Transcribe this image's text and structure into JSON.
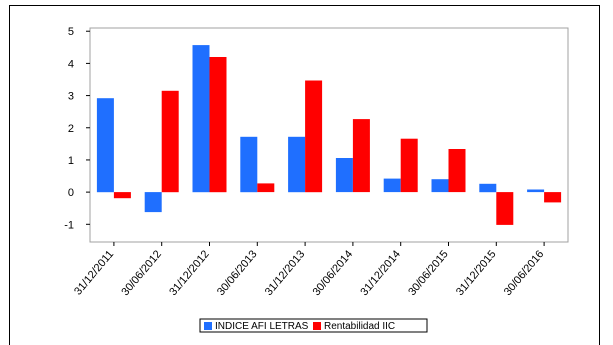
{
  "chart_data": {
    "type": "bar",
    "categories": [
      "31/12/2011",
      "30/06/2012",
      "31/12/2012",
      "30/06/2013",
      "31/12/2013",
      "30/06/2014",
      "31/12/2014",
      "30/06/2015",
      "31/12/2015",
      "30/06/2016"
    ],
    "series": [
      {
        "name": "INDICE AFI LETRAS",
        "color": "#1f6fff",
        "values": [
          2.92,
          -0.62,
          4.57,
          1.72,
          1.72,
          1.06,
          0.42,
          0.4,
          0.26,
          0.08
        ]
      },
      {
        "name": "Rentabilidad IIC",
        "color": "#ff0000",
        "values": [
          -0.19,
          3.15,
          4.2,
          0.27,
          3.47,
          2.27,
          1.66,
          1.34,
          -1.02,
          -0.32
        ]
      }
    ],
    "yticks": [
      5,
      4,
      3,
      2,
      1,
      0,
      -1
    ],
    "ylim": [
      -1.55,
      5.1
    ],
    "title": "",
    "xlabel": "",
    "ylabel": "",
    "grid": false,
    "legend_position": "bottom-center"
  }
}
